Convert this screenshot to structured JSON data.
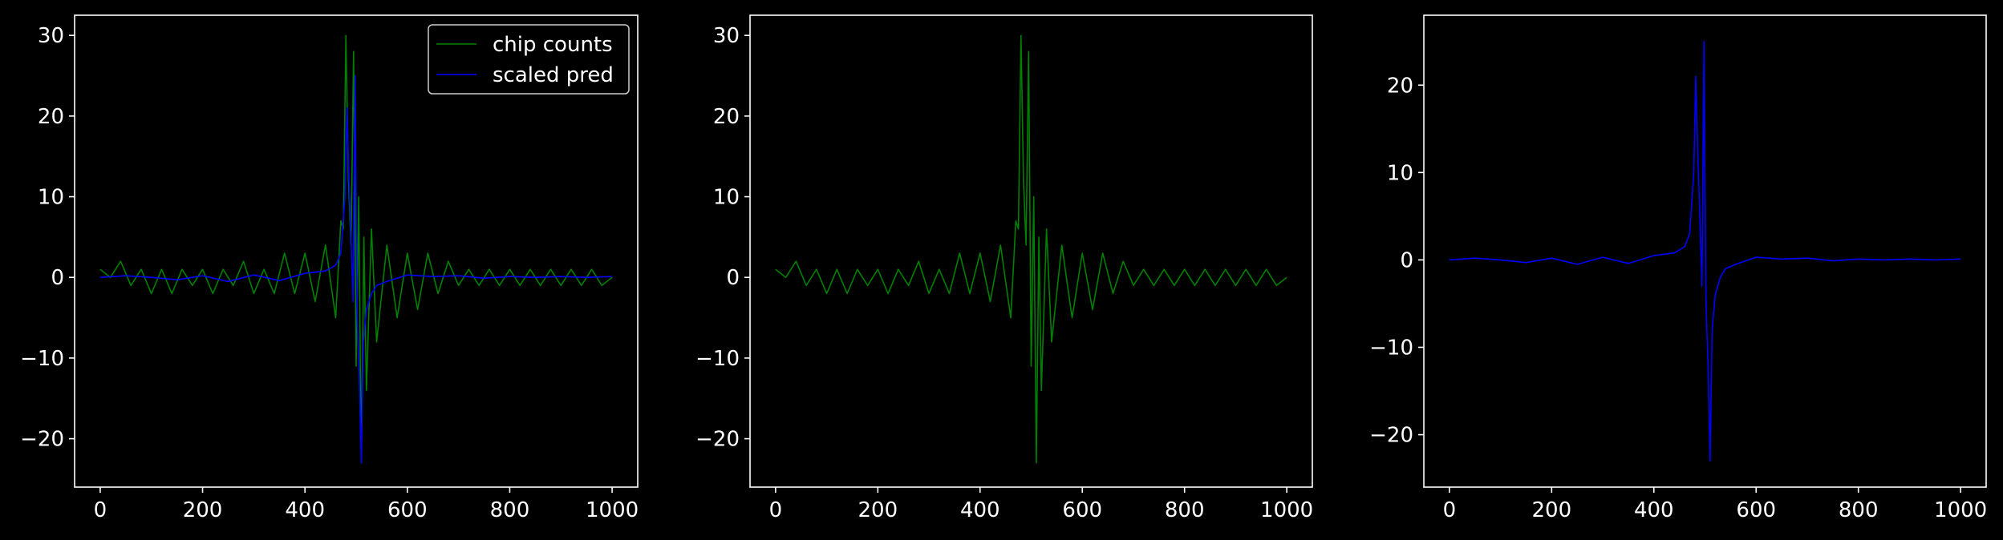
{
  "colors": {
    "background": "#000000",
    "axes": "#ffffff",
    "series_green": "#008000",
    "series_blue": "#0000ff"
  },
  "legend": {
    "placement": "upper right",
    "entries": [
      "chip counts",
      "scaled pred"
    ]
  },
  "chart_data": [
    {
      "type": "line",
      "xlim": [
        -50,
        1050
      ],
      "ylim": [
        -26,
        32.5
      ],
      "xticks": [
        0,
        200,
        400,
        600,
        800,
        1000
      ],
      "xtick_labels": [
        "0",
        "200",
        "400",
        "600",
        "800",
        "1000"
      ],
      "yticks": [
        -20,
        -10,
        0,
        10,
        20,
        30
      ],
      "ytick_labels": [
        "−20",
        "−10",
        "0",
        "10",
        "20",
        "30"
      ],
      "grid": false,
      "legend": "upper right",
      "series": [
        {
          "name": "chip counts",
          "color": "#008000",
          "x": [
            0,
            20,
            40,
            60,
            80,
            100,
            120,
            140,
            160,
            180,
            200,
            220,
            240,
            260,
            280,
            300,
            320,
            340,
            360,
            380,
            400,
            420,
            440,
            460,
            470,
            475,
            480,
            485,
            490,
            495,
            500,
            505,
            510,
            515,
            520,
            530,
            540,
            560,
            580,
            600,
            620,
            640,
            660,
            680,
            700,
            720,
            740,
            760,
            780,
            800,
            820,
            840,
            860,
            880,
            900,
            920,
            940,
            960,
            980,
            1000
          ],
          "y": [
            1,
            0,
            2,
            -1,
            1,
            -2,
            1,
            -2,
            1,
            -1,
            1,
            -2,
            1,
            -1,
            2,
            -2,
            1,
            -2,
            3,
            -2,
            3,
            -3,
            4,
            -5,
            7,
            6,
            30,
            12,
            4,
            28,
            -11,
            10,
            -23,
            5,
            -14,
            6,
            -8,
            4,
            -5,
            3,
            -4,
            3,
            -2,
            2,
            -1,
            1,
            -1,
            1,
            -1,
            1,
            -1,
            1,
            -1,
            1,
            -1,
            1,
            -1,
            1,
            -1,
            0
          ]
        },
        {
          "name": "scaled pred",
          "color": "#0000ff",
          "x": [
            0,
            50,
            100,
            150,
            200,
            250,
            300,
            350,
            400,
            440,
            460,
            470,
            478,
            482,
            486,
            490,
            494,
            498,
            500,
            502,
            506,
            510,
            514,
            520,
            530,
            540,
            560,
            600,
            650,
            700,
            750,
            800,
            850,
            900,
            950,
            1000
          ],
          "y": [
            0,
            0.2,
            0,
            -0.3,
            0.2,
            -0.5,
            0.3,
            -0.4,
            0.5,
            0.8,
            1.5,
            3,
            10,
            21,
            12,
            5,
            -3,
            25,
            8,
            -5,
            -12,
            -23,
            -8,
            -4,
            -2,
            -1,
            -0.5,
            0.3,
            0.1,
            0.2,
            -0.1,
            0.1,
            0,
            0.1,
            0,
            0.1
          ]
        }
      ]
    },
    {
      "type": "line",
      "xlim": [
        -50,
        1050
      ],
      "ylim": [
        -26,
        32.5
      ],
      "xticks": [
        0,
        200,
        400,
        600,
        800,
        1000
      ],
      "xtick_labels": [
        "0",
        "200",
        "400",
        "600",
        "800",
        "1000"
      ],
      "yticks": [
        -20,
        -10,
        0,
        10,
        20,
        30
      ],
      "ytick_labels": [
        "−20",
        "−10",
        "0",
        "10",
        "20",
        "30"
      ],
      "grid": false,
      "series": [
        {
          "color": "#008000",
          "x": [
            0,
            20,
            40,
            60,
            80,
            100,
            120,
            140,
            160,
            180,
            200,
            220,
            240,
            260,
            280,
            300,
            320,
            340,
            360,
            380,
            400,
            420,
            440,
            460,
            470,
            475,
            480,
            485,
            490,
            495,
            500,
            505,
            510,
            515,
            520,
            530,
            540,
            560,
            580,
            600,
            620,
            640,
            660,
            680,
            700,
            720,
            740,
            760,
            780,
            800,
            820,
            840,
            860,
            880,
            900,
            920,
            940,
            960,
            980,
            1000
          ],
          "y": [
            1,
            0,
            2,
            -1,
            1,
            -2,
            1,
            -2,
            1,
            -1,
            1,
            -2,
            1,
            -1,
            2,
            -2,
            1,
            -2,
            3,
            -2,
            3,
            -3,
            4,
            -5,
            7,
            6,
            30,
            12,
            4,
            28,
            -11,
            10,
            -23,
            5,
            -14,
            6,
            -8,
            4,
            -5,
            3,
            -4,
            3,
            -2,
            2,
            -1,
            1,
            -1,
            1,
            -1,
            1,
            -1,
            1,
            -1,
            1,
            -1,
            1,
            -1,
            1,
            -1,
            0
          ]
        }
      ]
    },
    {
      "type": "line",
      "xlim": [
        -50,
        1050
      ],
      "ylim": [
        -26,
        28
      ],
      "xticks": [
        0,
        200,
        400,
        600,
        800,
        1000
      ],
      "xtick_labels": [
        "0",
        "200",
        "400",
        "600",
        "800",
        "1000"
      ],
      "yticks": [
        -20,
        -10,
        0,
        10,
        20
      ],
      "ytick_labels": [
        "−20",
        "−10",
        "0",
        "10",
        "20"
      ],
      "grid": false,
      "series": [
        {
          "color": "#0000ff",
          "x": [
            0,
            50,
            100,
            150,
            200,
            250,
            300,
            350,
            400,
            440,
            460,
            470,
            478,
            482,
            486,
            490,
            494,
            498,
            500,
            502,
            506,
            510,
            514,
            520,
            530,
            540,
            560,
            600,
            650,
            700,
            750,
            800,
            850,
            900,
            950,
            1000
          ],
          "y": [
            0,
            0.2,
            0,
            -0.3,
            0.2,
            -0.5,
            0.3,
            -0.4,
            0.5,
            0.8,
            1.5,
            3,
            10,
            21,
            12,
            5,
            -3,
            25,
            8,
            -5,
            -12,
            -23,
            -8,
            -4,
            -2,
            -1,
            -0.5,
            0.3,
            0.1,
            0.2,
            -0.1,
            0.1,
            0,
            0.1,
            0,
            0.1
          ]
        }
      ]
    }
  ]
}
